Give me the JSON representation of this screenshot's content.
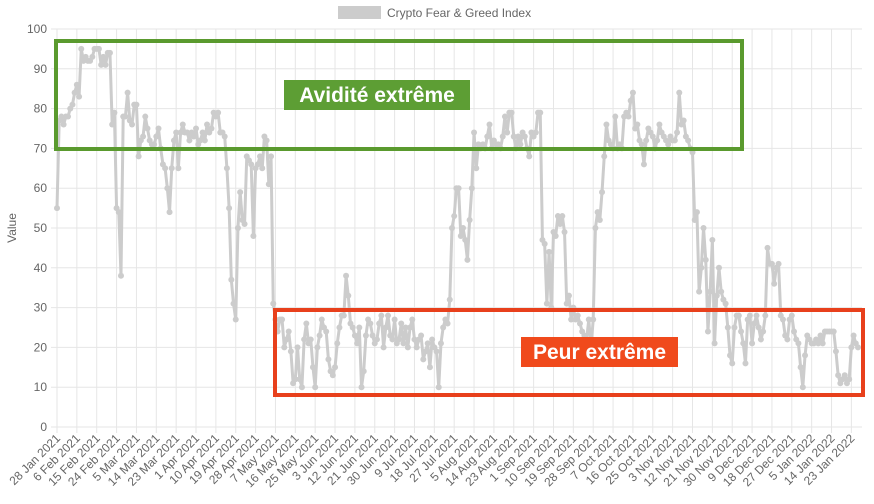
{
  "chart_data": {
    "type": "line",
    "legend": "top",
    "y_label": "Value",
    "annotations": [
      "Avidité extrême",
      "Peur extrême"
    ],
    "ylim": [
      0,
      100
    ],
    "yticks": [
      0,
      10,
      20,
      30,
      40,
      50,
      60,
      70,
      80,
      90,
      100
    ],
    "grid": true,
    "categories": [
      "28 Jan 2021",
      null,
      null,
      null,
      null,
      null,
      null,
      null,
      null,
      "6 Feb 2021",
      null,
      null,
      null,
      null,
      null,
      null,
      null,
      null,
      "15 Feb 2021",
      null,
      null,
      null,
      null,
      null,
      null,
      null,
      null,
      "24 Feb 2021",
      null,
      null,
      null,
      null,
      null,
      null,
      null,
      null,
      "5 Mar 2021",
      null,
      null,
      null,
      null,
      null,
      null,
      null,
      null,
      "14 Mar 2021",
      null,
      null,
      null,
      null,
      null,
      null,
      null,
      null,
      "23 Mar 2021",
      null,
      null,
      null,
      null,
      null,
      null,
      null,
      null,
      "1 Apr 2021",
      null,
      null,
      null,
      null,
      null,
      null,
      null,
      null,
      "10 Apr 2021",
      null,
      null,
      null,
      null,
      null,
      null,
      null,
      null,
      "19 Apr 2021",
      null,
      null,
      null,
      null,
      null,
      null,
      null,
      null,
      "28 Apr 2021",
      null,
      null,
      null,
      null,
      null,
      null,
      null,
      null,
      "7 May 2021",
      null,
      null,
      null,
      null,
      null,
      null,
      null,
      null,
      "16 May 2021",
      null,
      null,
      null,
      null,
      null,
      null,
      null,
      null,
      "25 May 2021",
      null,
      null,
      null,
      null,
      null,
      null,
      null,
      null,
      "3 Jun 2021",
      null,
      null,
      null,
      null,
      null,
      null,
      null,
      null,
      "12 Jun 2021",
      null,
      null,
      null,
      null,
      null,
      null,
      null,
      null,
      "21 Jun 2021",
      null,
      null,
      null,
      null,
      null,
      null,
      null,
      null,
      "30 Jun 2021",
      null,
      null,
      null,
      null,
      null,
      null,
      null,
      null,
      "9 Jul 2021",
      null,
      null,
      null,
      null,
      null,
      null,
      null,
      null,
      "18 Jul 2021",
      null,
      null,
      null,
      null,
      null,
      null,
      null,
      null,
      "27 Jul 2021",
      null,
      null,
      null,
      null,
      null,
      null,
      null,
      null,
      "5 Aug 2021",
      null,
      null,
      null,
      null,
      null,
      null,
      null,
      null,
      "14 Aug 2021",
      null,
      null,
      null,
      null,
      null,
      null,
      null,
      null,
      "23 Aug 2021",
      null,
      null,
      null,
      null,
      null,
      null,
      null,
      null,
      "1 Sep 2021",
      null,
      null,
      null,
      null,
      null,
      null,
      null,
      null,
      "10 Sep 2021",
      null,
      null,
      null,
      null,
      null,
      null,
      null,
      null,
      "19 Sep 2021",
      null,
      null,
      null,
      null,
      null,
      null,
      null,
      null,
      "28 Sep 2021",
      null,
      null,
      null,
      null,
      null,
      null,
      null,
      null,
      "7 Oct 2021",
      null,
      null,
      null,
      null,
      null,
      null,
      null,
      null,
      "16 Oct 2021",
      null,
      null,
      null,
      null,
      null,
      null,
      null,
      null,
      "25 Oct 2021",
      null,
      null,
      null,
      null,
      null,
      null,
      null,
      null,
      "3 Nov 2021",
      null,
      null,
      null,
      null,
      null,
      null,
      null,
      null,
      "12 Nov 2021",
      null,
      null,
      null,
      null,
      null,
      null,
      null,
      null,
      "21 Nov 2021",
      null,
      null,
      null,
      null,
      null,
      null,
      null,
      null,
      "30 Nov 2021",
      null,
      null,
      null,
      null,
      null,
      null,
      null,
      null,
      "9 Dec 2021",
      null,
      null,
      null,
      null,
      null,
      null,
      null,
      null,
      "18 Dec 2021",
      null,
      null,
      null,
      null,
      null,
      null,
      null,
      null,
      "27 Dec 2021",
      null,
      null,
      null,
      null,
      null,
      null,
      null,
      null,
      "5 Jan 2022",
      null,
      null,
      null,
      null,
      null,
      null,
      null,
      null,
      "14 Jan 2022",
      null,
      null,
      null,
      null,
      null,
      null,
      null,
      null,
      "23 Jan 2022",
      null,
      null,
      null
    ],
    "series": [
      {
        "name": "Crypto Fear & Greed Index",
        "color": "#cccccc",
        "values": [
          55,
          77,
          78,
          76,
          78,
          78,
          80,
          81,
          84,
          86,
          83,
          95,
          92,
          93,
          92,
          92,
          93,
          95,
          95,
          95,
          91,
          93,
          91,
          94,
          94,
          76,
          79,
          55,
          54,
          38,
          78,
          78,
          84,
          77,
          76,
          81,
          81,
          68,
          72,
          73,
          78,
          75,
          72,
          71,
          71,
          73,
          75,
          70,
          66,
          65,
          60,
          54,
          65,
          72,
          74,
          65,
          74,
          76,
          74,
          74,
          72,
          74,
          73,
          75,
          71,
          72,
          74,
          72,
          76,
          74,
          75,
          79,
          78,
          79,
          74,
          74,
          73,
          65,
          55,
          37,
          31,
          27,
          50,
          59,
          52,
          51,
          68,
          67,
          66,
          48,
          65,
          66,
          68,
          65,
          73,
          72,
          61,
          68,
          31,
          27,
          24,
          27,
          27,
          20,
          22,
          24,
          19,
          11,
          12,
          20,
          12,
          10,
          22,
          26,
          21,
          22,
          15,
          10,
          20,
          23,
          27,
          25,
          24,
          17,
          14,
          13,
          15,
          21,
          25,
          28,
          28,
          38,
          33,
          26,
          25,
          23,
          21,
          25,
          10,
          14,
          23,
          27,
          26,
          23,
          21,
          22,
          26,
          28,
          20,
          25,
          28,
          23,
          22,
          27,
          21,
          22,
          26,
          21,
          25,
          20,
          25,
          27,
          22,
          20,
          22,
          23,
          17,
          19,
          21,
          15,
          22,
          20,
          19,
          10,
          21,
          25,
          27,
          26,
          32,
          50,
          53,
          60,
          60,
          48,
          50,
          47,
          42,
          52,
          60,
          74,
          65,
          71,
          70,
          71,
          70,
          73,
          76,
          70,
          72,
          71,
          71,
          70,
          73,
          78,
          74,
          79,
          79,
          73,
          70,
          73,
          71,
          74,
          73,
          70,
          68,
          74,
          73,
          74,
          79,
          79,
          47,
          46,
          31,
          44,
          30,
          49,
          48,
          53,
          51,
          53,
          49,
          31,
          33,
          27,
          30,
          27,
          28,
          26,
          24,
          23,
          22,
          27,
          20,
          27,
          50,
          54,
          52,
          59,
          68,
          76,
          72,
          71,
          70,
          78,
          70,
          71,
          70,
          78,
          79,
          78,
          82,
          84,
          75,
          76,
          72,
          71,
          66,
          72,
          75,
          74,
          73,
          70,
          72,
          76,
          74,
          73,
          72,
          71,
          73,
          72,
          72,
          74,
          84,
          76,
          77,
          73,
          72,
          70,
          69,
          52,
          54,
          34,
          40,
          50,
          42,
          24,
          34,
          47,
          21,
          33,
          40,
          34,
          32,
          31,
          25,
          18,
          16,
          25,
          28,
          28,
          24,
          21,
          16,
          27,
          28,
          21,
          26,
          28,
          25,
          22,
          24,
          28,
          45,
          41,
          41,
          36,
          40,
          41,
          28,
          27,
          23,
          22,
          27,
          28,
          24,
          22,
          21,
          15,
          10,
          18,
          23,
          22,
          21,
          21,
          22,
          21,
          23,
          21,
          24,
          24,
          24,
          24,
          24,
          19,
          13,
          11,
          12,
          13,
          11,
          12,
          20,
          23,
          21,
          20
        ]
      }
    ]
  }
}
